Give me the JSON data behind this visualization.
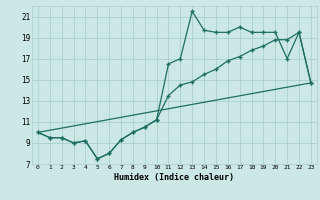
{
  "xlabel": "Humidex (Indice chaleur)",
  "bg_color": "#cce8e4",
  "grid_color": "#aacfca",
  "line_color": "#1e6e62",
  "xlim": [
    -0.5,
    23.5
  ],
  "ylim": [
    7,
    22
  ],
  "xticks": [
    0,
    1,
    2,
    3,
    4,
    5,
    6,
    7,
    8,
    9,
    10,
    11,
    12,
    13,
    14,
    15,
    16,
    17,
    18,
    19,
    20,
    21,
    22,
    23
  ],
  "yticks": [
    7,
    9,
    11,
    13,
    15,
    17,
    19,
    21
  ],
  "line1_x": [
    0,
    1,
    2,
    3,
    4,
    5,
    6,
    7,
    8,
    9,
    10,
    11,
    12,
    13,
    14,
    15,
    16,
    17,
    18,
    19,
    20,
    21,
    22,
    23
  ],
  "line1_y": [
    10.0,
    9.5,
    9.5,
    9.0,
    9.2,
    7.5,
    8.0,
    9.3,
    10.0,
    10.5,
    11.2,
    16.5,
    17.0,
    21.5,
    19.7,
    19.5,
    19.5,
    20.0,
    19.5,
    19.5,
    19.5,
    17.0,
    19.5,
    14.7
  ],
  "line2_x": [
    0,
    1,
    2,
    3,
    4,
    5,
    6,
    7,
    8,
    9,
    10,
    11,
    12,
    13,
    14,
    15,
    16,
    17,
    18,
    19,
    20,
    21,
    22,
    23
  ],
  "line2_y": [
    10.0,
    9.5,
    9.5,
    9.0,
    9.2,
    7.5,
    8.0,
    9.3,
    10.0,
    10.5,
    11.2,
    13.5,
    14.5,
    14.8,
    15.5,
    16.0,
    16.8,
    17.2,
    17.8,
    18.2,
    18.8,
    18.8,
    19.5,
    14.7
  ],
  "line3_x": [
    0,
    23
  ],
  "line3_y": [
    10.0,
    14.7
  ]
}
